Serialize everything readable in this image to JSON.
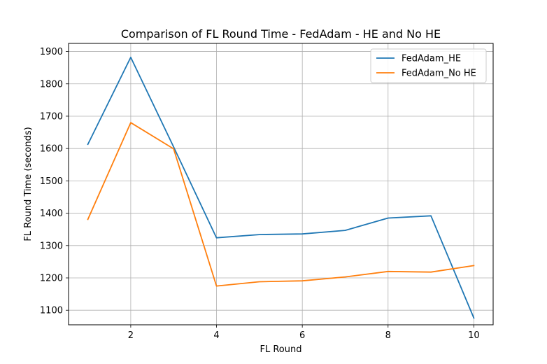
{
  "chart_data": {
    "type": "line",
    "title": "Comparison of FL Round Time - FedAdam - HE and No HE",
    "xlabel": "FL Round",
    "ylabel": "FL Round Time (seconds)",
    "x": [
      1,
      2,
      3,
      4,
      5,
      6,
      7,
      8,
      9,
      10
    ],
    "xlim": [
      0.55,
      10.45
    ],
    "ylim": [
      1055,
      1925
    ],
    "xticks": [
      2,
      4,
      6,
      8,
      10
    ],
    "yticks": [
      1100,
      1200,
      1300,
      1400,
      1500,
      1600,
      1700,
      1800,
      1900
    ],
    "grid": true,
    "legend_position": "top-right",
    "series": [
      {
        "name": "FedAdam_HE",
        "color": "#1f77b4",
        "values": [
          1613,
          1882,
          1605,
          1324,
          1334,
          1336,
          1347,
          1385,
          1392,
          1076
        ]
      },
      {
        "name": "FedAdam_No HE",
        "color": "#ff7f0e",
        "values": [
          1381,
          1680,
          1599,
          1175,
          1188,
          1191,
          1203,
          1220,
          1218,
          1238
        ]
      }
    ]
  }
}
